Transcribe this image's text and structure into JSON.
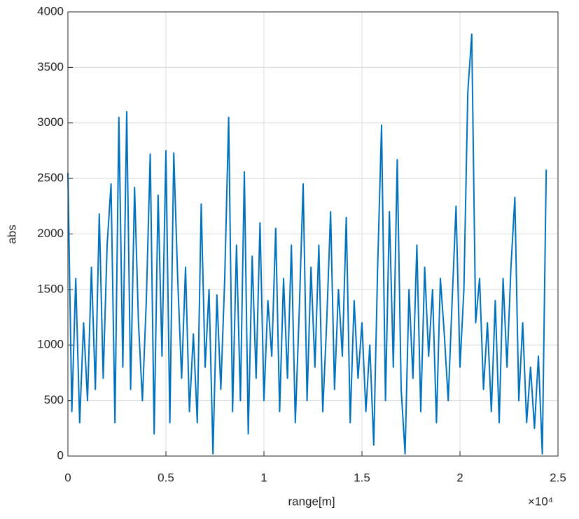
{
  "chart_data": {
    "type": "line",
    "x_label": "range[m]",
    "y_label": "abs",
    "x_multiplier": "×10⁴",
    "xlim": [
      0,
      2.5
    ],
    "xticks": [
      0,
      0.5,
      1,
      1.5,
      2,
      2.5
    ],
    "ylim": [
      0,
      4000
    ],
    "yticks": [
      0,
      500,
      1000,
      1500,
      2000,
      2500,
      3000,
      3500,
      4000
    ],
    "grid": true,
    "series": [
      {
        "color": "#0072bd",
        "x": [
          0,
          0.02,
          0.04,
          0.06,
          0.08,
          0.1,
          0.12,
          0.14,
          0.16,
          0.18,
          0.2,
          0.22,
          0.24,
          0.26,
          0.28,
          0.3,
          0.32,
          0.34,
          0.36,
          0.38,
          0.4,
          0.42,
          0.44,
          0.46,
          0.48,
          0.5,
          0.52,
          0.54,
          0.56,
          0.58,
          0.6,
          0.62,
          0.64,
          0.66,
          0.68,
          0.7,
          0.72,
          0.74,
          0.76,
          0.78,
          0.8,
          0.82,
          0.84,
          0.86,
          0.88,
          0.9,
          0.92,
          0.94,
          0.96,
          0.98,
          1,
          1.02,
          1.04,
          1.06,
          1.08,
          1.1,
          1.12,
          1.14,
          1.16,
          1.18,
          1.2,
          1.22,
          1.24,
          1.26,
          1.28,
          1.3,
          1.32,
          1.34,
          1.36,
          1.38,
          1.4,
          1.42,
          1.44,
          1.46,
          1.48,
          1.5,
          1.52,
          1.54,
          1.56,
          1.58,
          1.6,
          1.62,
          1.64,
          1.66,
          1.68,
          1.7,
          1.72,
          1.74,
          1.76,
          1.78,
          1.8,
          1.82,
          1.84,
          1.86,
          1.88,
          1.9,
          1.92,
          1.94,
          1.96,
          1.98,
          2,
          2.02,
          2.04,
          2.06,
          2.08,
          2.1,
          2.12,
          2.14,
          2.16,
          2.18,
          2.2,
          2.22,
          2.24,
          2.26,
          2.28,
          2.3,
          2.32,
          2.34,
          2.36,
          2.38,
          2.4,
          2.42,
          2.44
        ],
        "values": [
          2550,
          400,
          1600,
          300,
          1200,
          500,
          1700,
          600,
          2180,
          700,
          1900,
          2450,
          300,
          3050,
          800,
          3100,
          600,
          2420,
          1200,
          500,
          1400,
          2720,
          200,
          2350,
          900,
          2750,
          300,
          2730,
          1600,
          700,
          1700,
          400,
          1100,
          300,
          2270,
          800,
          1500,
          20,
          1450,
          600,
          1600,
          3050,
          400,
          1900,
          500,
          2560,
          200,
          1800,
          700,
          2100,
          500,
          1400,
          900,
          2050,
          400,
          1600,
          700,
          1900,
          300,
          1300,
          2450,
          500,
          1700,
          800,
          1900,
          400,
          1200,
          2200,
          600,
          1500,
          900,
          2150,
          300,
          1400,
          700,
          1200,
          400,
          1000,
          100,
          1700,
          2980,
          500,
          2200,
          800,
          2670,
          600,
          20,
          1500,
          700,
          1900,
          400,
          1700,
          900,
          1500,
          300,
          1600,
          1100,
          500,
          1400,
          2250,
          800,
          1500,
          3280,
          3800,
          1200,
          1600,
          600,
          1200,
          400,
          1400,
          300,
          1600,
          800,
          1700,
          2330,
          500,
          1200,
          300,
          800,
          250,
          900,
          20,
          2580
        ]
      }
    ]
  }
}
